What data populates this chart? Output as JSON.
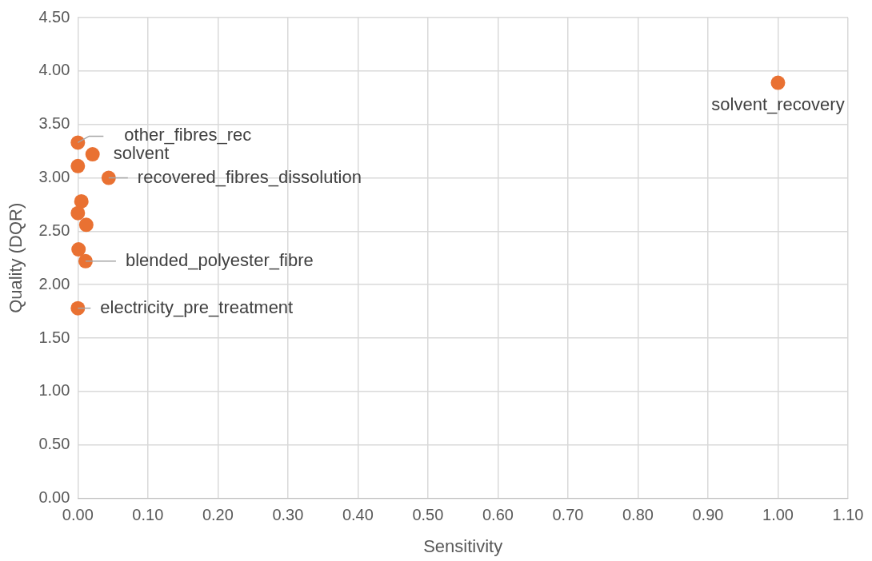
{
  "chart_data": {
    "type": "scatter",
    "xlabel": "Sensitivity",
    "ylabel": "Quality (DQR)",
    "x": [
      1.0,
      0.0,
      0.021,
      0.0,
      0.044,
      0.005,
      0.0,
      0.012,
      0.001,
      0.011,
      0.0
    ],
    "series": [
      {
        "color": "#e97132",
        "values": [
          3.89,
          3.33,
          3.22,
          3.11,
          3.0,
          2.78,
          2.67,
          2.56,
          2.33,
          2.22,
          1.78
        ]
      }
    ],
    "xlim": [
      0,
      1.1
    ],
    "xticks": [
      {
        "value": 0,
        "label": "0.00"
      },
      {
        "value": 0.1,
        "label": "0.10"
      },
      {
        "value": 0.2,
        "label": "0.20"
      },
      {
        "value": 0.3,
        "label": "0.30"
      },
      {
        "value": 0.4,
        "label": "0.40"
      },
      {
        "value": 0.5,
        "label": "0.50"
      },
      {
        "value": 0.6,
        "label": "0.60"
      },
      {
        "value": 0.7,
        "label": "0.70"
      },
      {
        "value": 0.8,
        "label": "0.80"
      },
      {
        "value": 0.9,
        "label": "0.90"
      },
      {
        "value": 1.0,
        "label": "1.00"
      },
      {
        "value": 1.1,
        "label": "1.10"
      }
    ],
    "ylim": [
      0,
      4.5
    ],
    "yticks": [
      {
        "value": 0,
        "label": "0.00"
      },
      {
        "value": 0.5,
        "label": "0.50"
      },
      {
        "value": 1,
        "label": "1.00"
      },
      {
        "value": 1.5,
        "label": "1.50"
      },
      {
        "value": 2,
        "label": "2.00"
      },
      {
        "value": 2.5,
        "label": "2.50"
      },
      {
        "value": 3,
        "label": "3.00"
      },
      {
        "value": 3.5,
        "label": "3.50"
      },
      {
        "value": 4,
        "label": "4.00"
      },
      {
        "value": 4.5,
        "label": "4.50"
      }
    ],
    "annotations": [
      {
        "text": "solvent_recovery",
        "x": 1.0,
        "y": 3.89
      },
      {
        "text": "other_fibres_rec",
        "x": 0.0,
        "y": 3.33
      },
      {
        "text": "solvent",
        "x": 0.021,
        "y": 3.22
      },
      {
        "text": "recovered_fibres_dissolution",
        "x": 0.044,
        "y": 3.0
      },
      {
        "text": "blended_polyester_fibre",
        "x": 0.011,
        "y": 2.22
      },
      {
        "text": "electricity_pre_treatment",
        "x": 0.0,
        "y": 1.78
      }
    ],
    "grid": true,
    "legend": false,
    "marker": "circle"
  }
}
